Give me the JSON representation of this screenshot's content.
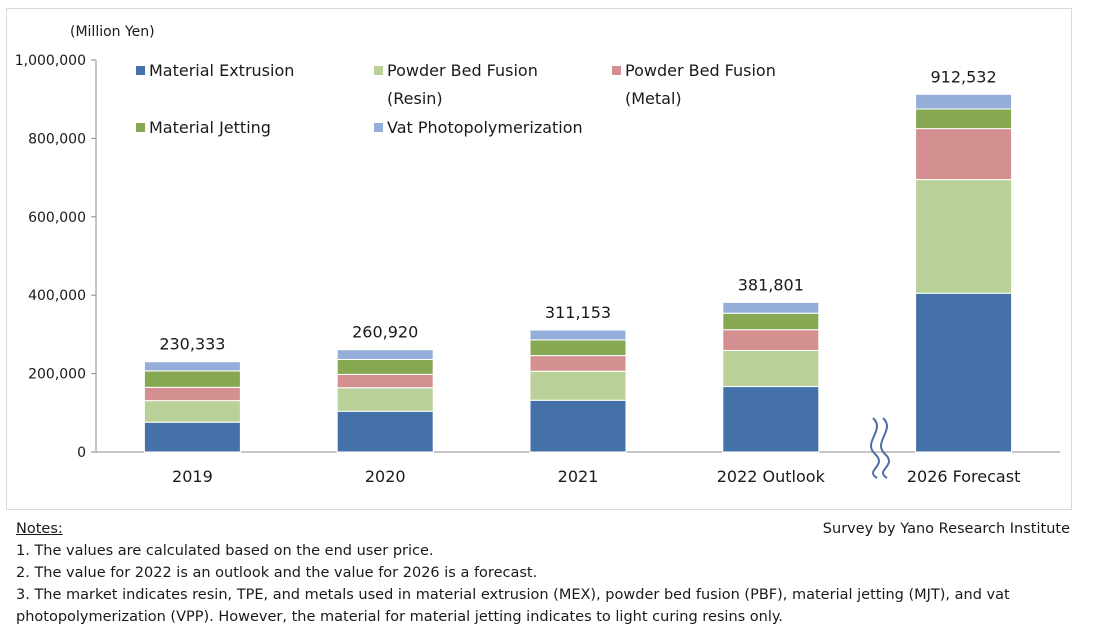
{
  "chart_data": {
    "type": "bar",
    "stacked": true,
    "unit_label": "(Million Yen)",
    "categories": [
      "2019",
      "2020",
      "2021",
      "2022 Outlook",
      "2026 Forecast"
    ],
    "totals": [
      "230,333",
      "260,920",
      "311,153",
      "381,801",
      "912,532"
    ],
    "series": [
      {
        "name": "Material Extrusion",
        "color": "#4472a8",
        "values": [
          76000,
          104000,
          132000,
          167000,
          405000
        ]
      },
      {
        "name": "Powder Bed Fusion (Resin)",
        "color": "#b9d198",
        "values": [
          55000,
          60000,
          74000,
          92000,
          290000
        ]
      },
      {
        "name": "Powder Bed Fusion (Metal)",
        "color": "#d49090",
        "values": [
          34000,
          34000,
          40000,
          53000,
          130000
        ]
      },
      {
        "name": "Material Jetting",
        "color": "#86a852",
        "values": [
          42000,
          38000,
          40000,
          42000,
          50000
        ]
      },
      {
        "name": "Vat Photopolymerization",
        "color": "#95aed9",
        "values": [
          23333,
          24920,
          25153,
          27801,
          37532
        ]
      }
    ],
    "yticks": [
      "0",
      "200,000",
      "400,000",
      "600,000",
      "800,000",
      "1,000,000"
    ],
    "ylim": [
      0,
      1000000
    ],
    "grid": false,
    "legend": {
      "placement": "top",
      "lines": [
        [
          "Material Extrusion",
          "Powder Bed Fusion",
          "Powder Bed Fusion"
        ],
        [
          "",
          "(Resin)",
          "(Metal)"
        ],
        [
          "Material Jetting",
          "Vat Photopolymerization",
          ""
        ]
      ]
    },
    "axis_break": "between 2022 Outlook and 2026 Forecast"
  },
  "notes": {
    "title": "Notes:",
    "items": [
      "1.  The values are calculated based on the end user price.",
      "2.  The value for 2022 is an outlook and the value for 2026 is a forecast.",
      "3.  The market indicates resin, TPE, and metals used in material extrusion (MEX), powder bed fusion (PBF), material jetting (MJT), and vat photopolymerization (VPP). However, the material for material jetting indicates to light curing resins only."
    ]
  },
  "source": "Survey by Yano Research Institute"
}
